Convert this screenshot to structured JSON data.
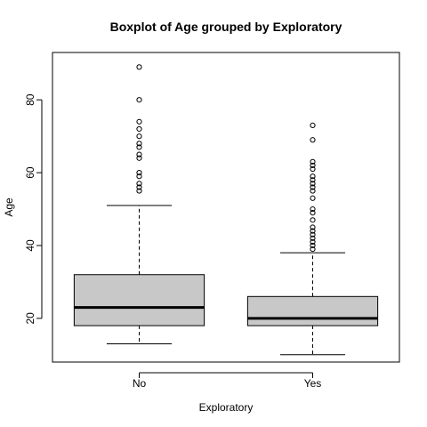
{
  "chart_data": {
    "type": "boxplot",
    "title": "Boxplot of Age grouped by Exploratory",
    "xlabel": "Exploratory",
    "ylabel": "Age",
    "ylim": [
      8,
      93
    ],
    "yticks": [
      20,
      40,
      60,
      80
    ],
    "grid": false,
    "colors": {
      "box_fill": "#c8c8c8",
      "stroke": "#000000",
      "background": "#ffffff"
    },
    "categories": [
      "No",
      "Yes"
    ],
    "boxes": [
      {
        "category": "No",
        "whisker_low": 13,
        "q1": 18,
        "median": 23,
        "q3": 32,
        "whisker_high": 51,
        "outliers": [
          55,
          56,
          57,
          59,
          60,
          64,
          65,
          67,
          68,
          70,
          72,
          74,
          80,
          89
        ]
      },
      {
        "category": "Yes",
        "whisker_low": 10,
        "q1": 18,
        "median": 20,
        "q3": 26,
        "whisker_high": 38,
        "outliers": [
          39,
          40,
          41,
          42,
          43,
          44,
          45,
          47,
          49,
          50,
          53,
          55,
          56,
          57,
          58,
          59,
          61,
          62,
          63,
          69,
          73
        ]
      }
    ]
  }
}
